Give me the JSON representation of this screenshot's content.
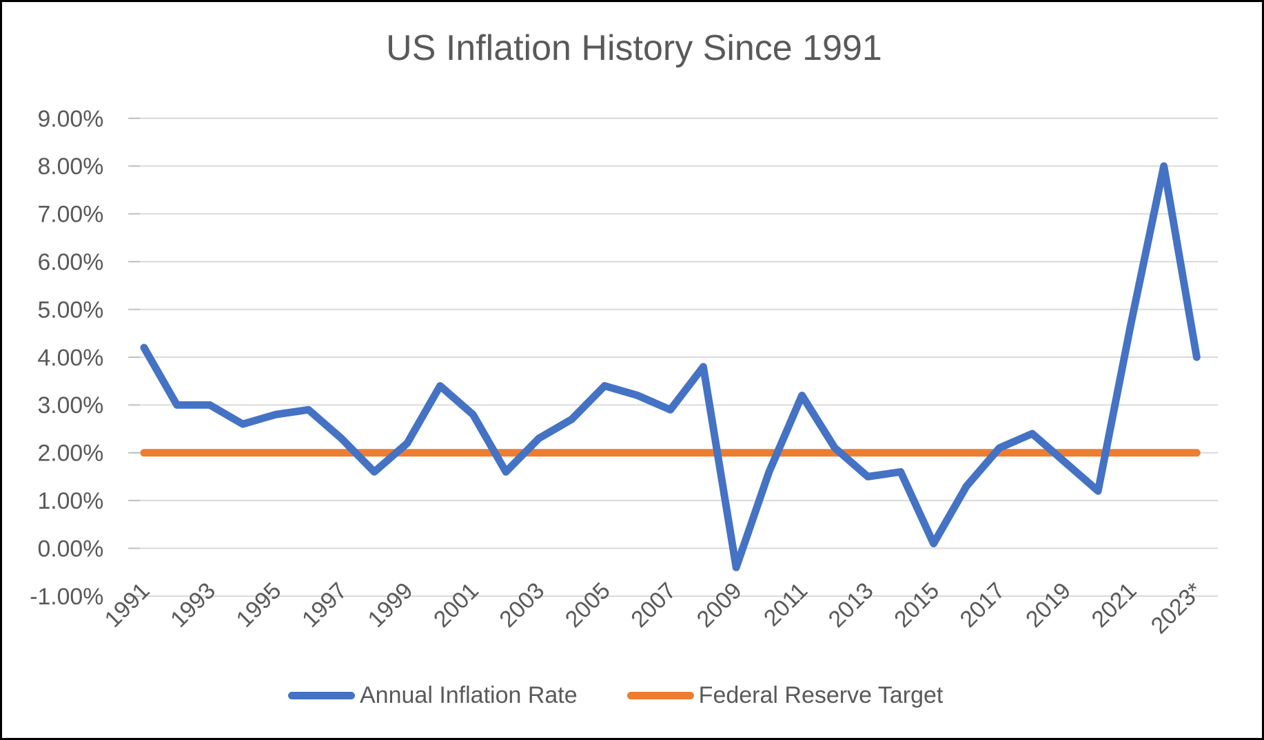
{
  "chart_data": {
    "type": "line",
    "title": "US Inflation History Since 1991",
    "categories": [
      "1991",
      "1992",
      "1993",
      "1994",
      "1995",
      "1996",
      "1997",
      "1998",
      "1999",
      "2000",
      "2001",
      "2002",
      "2003",
      "2004",
      "2005",
      "2006",
      "2007",
      "2008",
      "2009",
      "2010",
      "2011",
      "2012",
      "2013",
      "2014",
      "2015",
      "2016",
      "2017",
      "2018",
      "2019",
      "2020",
      "2021",
      "2022",
      "2023*"
    ],
    "series": [
      {
        "name": "Annual Inflation Rate",
        "color": "#4472C4",
        "values": [
          4.2,
          3.0,
          3.0,
          2.6,
          2.8,
          2.9,
          2.3,
          1.6,
          2.2,
          3.4,
          2.8,
          1.6,
          2.3,
          2.7,
          3.4,
          3.2,
          2.9,
          3.8,
          -0.4,
          1.6,
          3.2,
          2.1,
          1.5,
          1.6,
          0.1,
          1.3,
          2.1,
          2.4,
          1.8,
          1.2,
          4.7,
          8.0,
          4.0
        ]
      },
      {
        "name": "Federal Reserve Target",
        "color": "#ED7D31",
        "constant_value": 2.0
      }
    ],
    "xlabel": "",
    "ylabel": "",
    "ylim": [
      -1,
      9
    ],
    "ytick_step": 1,
    "ytick_labels": [
      "9.00%",
      "8.00%",
      "7.00%",
      "6.00%",
      "5.00%",
      "4.00%",
      "3.00%",
      "2.00%",
      "1.00%",
      "0.00%",
      "-1.00%"
    ],
    "xtick_labels": [
      "1991",
      "1993",
      "1995",
      "1997",
      "1999",
      "2001",
      "2003",
      "2005",
      "2007",
      "2009",
      "2011",
      "2013",
      "2015",
      "2017",
      "2019",
      "2021",
      "2023*"
    ],
    "xtick_rotation_deg": 45,
    "grid": "horizontal",
    "legend_position": "bottom",
    "theme": {
      "text_color": "#595959",
      "gridline_color": "#D9D9D9",
      "tick_color": "#BFBFBF",
      "background_color": "#FFFFFF",
      "border_color": "#000000"
    }
  }
}
